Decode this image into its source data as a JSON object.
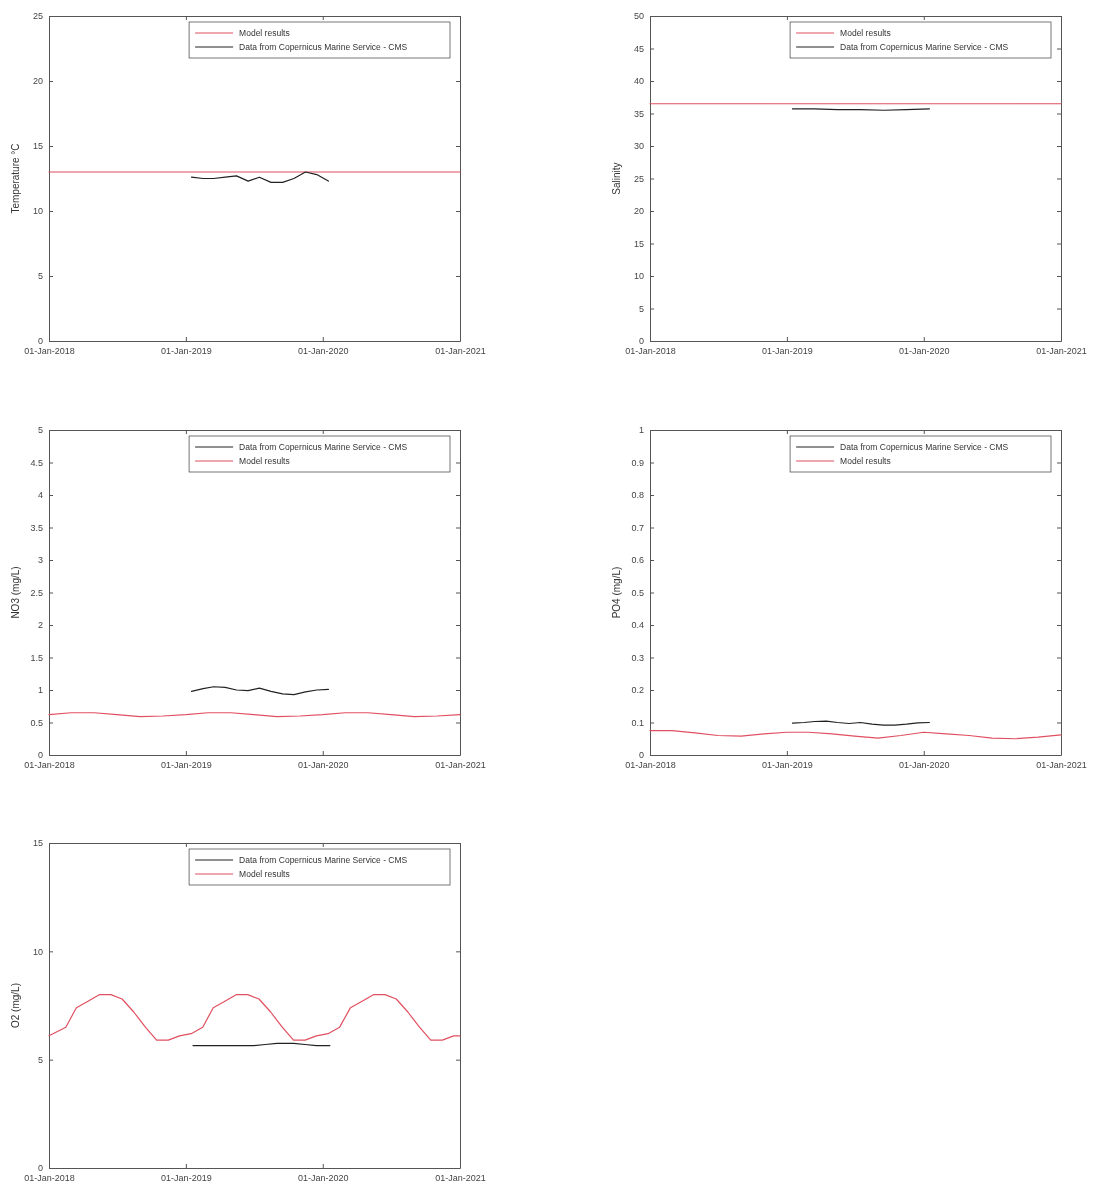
{
  "chart_data": [
    {
      "type": "line",
      "ylabel": "Temperature °C",
      "xlim": [
        "2018-01-01",
        "2021-01-01"
      ],
      "xticks": [
        {
          "value": "2018-01-01",
          "label": "01-Jan-2018"
        },
        {
          "value": "2019-01-01",
          "label": "01-Jan-2019"
        },
        {
          "value": "2020-01-01",
          "label": "01-Jan-2020"
        },
        {
          "value": "2021-01-01",
          "label": "01-Jan-2021"
        }
      ],
      "ylim": [
        0,
        25
      ],
      "yticks": [
        0,
        5,
        10,
        15,
        20,
        25
      ],
      "legend": "top right",
      "grid": false,
      "series": [
        {
          "name": "Model results",
          "color": "#e05060",
          "x": [
            "2018-01-01",
            "2021-01-01"
          ],
          "values": [
            13,
            13
          ]
        },
        {
          "name": "Data from Copernicus Marine Service - CMS",
          "color": "#222222",
          "x": [
            "2019-01-16",
            "2019-02-16",
            "2019-03-16",
            "2019-04-16",
            "2019-05-16",
            "2019-06-16",
            "2019-07-16",
            "2019-08-16",
            "2019-09-16",
            "2019-10-16",
            "2019-11-16",
            "2019-12-16",
            "2020-01-16"
          ],
          "values": [
            12.6,
            12.5,
            12.5,
            12.6,
            12.7,
            12.3,
            12.6,
            12.2,
            12.2,
            12.5,
            13.0,
            12.8,
            12.3
          ]
        }
      ]
    },
    {
      "type": "line",
      "ylabel": "Salinity",
      "xlim": [
        "2018-01-01",
        "2021-01-01"
      ],
      "xticks": [
        {
          "value": "2018-01-01",
          "label": "01-Jan-2018"
        },
        {
          "value": "2019-01-01",
          "label": "01-Jan-2019"
        },
        {
          "value": "2020-01-01",
          "label": "01-Jan-2020"
        },
        {
          "value": "2021-01-01",
          "label": "01-Jan-2021"
        }
      ],
      "ylim": [
        0,
        50
      ],
      "yticks": [
        0,
        5,
        10,
        15,
        20,
        25,
        30,
        35,
        40,
        45,
        50
      ],
      "legend": "top right",
      "grid": false,
      "series": [
        {
          "name": "Model results",
          "color": "#e05060",
          "x": [
            "2018-01-01",
            "2021-01-01"
          ],
          "values": [
            36.5,
            36.5
          ]
        },
        {
          "name": "Data from Copernicus Marine Service - CMS",
          "color": "#222222",
          "x": [
            "2019-01-16",
            "2019-03-16",
            "2019-05-16",
            "2019-07-16",
            "2019-09-16",
            "2019-11-16",
            "2020-01-16"
          ],
          "values": [
            35.7,
            35.7,
            35.6,
            35.6,
            35.5,
            35.6,
            35.7
          ]
        }
      ]
    },
    {
      "type": "line",
      "ylabel": "NO3 (mg/L)",
      "xlim": [
        "2018-01-01",
        "2021-01-01"
      ],
      "xticks": [
        {
          "value": "2018-01-01",
          "label": "01-Jan-2018"
        },
        {
          "value": "2019-01-01",
          "label": "01-Jan-2019"
        },
        {
          "value": "2020-01-01",
          "label": "01-Jan-2020"
        },
        {
          "value": "2021-01-01",
          "label": "01-Jan-2021"
        }
      ],
      "ylim": [
        0,
        5
      ],
      "yticks": [
        0,
        0.5,
        1,
        1.5,
        2,
        2.5,
        3,
        3.5,
        4,
        4.5,
        5
      ],
      "legend": "top right",
      "grid": false,
      "series": [
        {
          "name": "Data from Copernicus Marine Service - CMS",
          "color": "#222222",
          "x": [
            "2019-01-16",
            "2019-02-16",
            "2019-03-16",
            "2019-04-16",
            "2019-05-16",
            "2019-06-16",
            "2019-07-16",
            "2019-08-16",
            "2019-09-16",
            "2019-10-16",
            "2019-11-16",
            "2019-12-16",
            "2020-01-16"
          ],
          "values": [
            0.98,
            1.02,
            1.05,
            1.04,
            1.0,
            0.99,
            1.03,
            0.98,
            0.94,
            0.93,
            0.97,
            1.0,
            1.01
          ]
        },
        {
          "name": "Model results",
          "color": "#e05060",
          "x": [
            "2018-01-01",
            "2018-03-01",
            "2018-05-01",
            "2018-07-01",
            "2018-09-01",
            "2018-11-01",
            "2019-01-01",
            "2019-03-01",
            "2019-05-01",
            "2019-07-01",
            "2019-09-01",
            "2019-11-01",
            "2020-01-01",
            "2020-03-01",
            "2020-05-01",
            "2020-07-01",
            "2020-09-01",
            "2020-11-01",
            "2021-01-01"
          ],
          "values": [
            0.62,
            0.65,
            0.65,
            0.62,
            0.59,
            0.6,
            0.62,
            0.65,
            0.65,
            0.62,
            0.59,
            0.6,
            0.62,
            0.65,
            0.65,
            0.62,
            0.59,
            0.6,
            0.62
          ]
        }
      ]
    },
    {
      "type": "line",
      "ylabel": "PO4 (mg/L)",
      "xlim": [
        "2018-01-01",
        "2021-01-01"
      ],
      "xticks": [
        {
          "value": "2018-01-01",
          "label": "01-Jan-2018"
        },
        {
          "value": "2019-01-01",
          "label": "01-Jan-2019"
        },
        {
          "value": "2020-01-01",
          "label": "01-Jan-2020"
        },
        {
          "value": "2021-01-01",
          "label": "01-Jan-2021"
        }
      ],
      "ylim": [
        0,
        1
      ],
      "yticks": [
        0,
        0.1,
        0.2,
        0.3,
        0.4,
        0.5,
        0.6,
        0.7,
        0.8,
        0.9,
        1
      ],
      "legend": "top right",
      "grid": false,
      "series": [
        {
          "name": "Data from Copernicus Marine Service - CMS",
          "color": "#222222",
          "x": [
            "2019-01-16",
            "2019-02-16",
            "2019-03-16",
            "2019-04-16",
            "2019-05-16",
            "2019-06-16",
            "2019-07-16",
            "2019-08-16",
            "2019-09-16",
            "2019-10-16",
            "2019-11-16",
            "2019-12-16",
            "2020-01-16"
          ],
          "values": [
            0.098,
            0.1,
            0.103,
            0.104,
            0.1,
            0.097,
            0.1,
            0.095,
            0.092,
            0.092,
            0.095,
            0.099,
            0.1
          ]
        },
        {
          "name": "Model results",
          "color": "#e05060",
          "x": [
            "2018-01-01",
            "2018-03-01",
            "2018-05-01",
            "2018-07-01",
            "2018-09-01",
            "2018-11-01",
            "2019-01-01",
            "2019-03-01",
            "2019-05-01",
            "2019-07-01",
            "2019-09-01",
            "2019-11-01",
            "2020-01-01",
            "2020-03-01",
            "2020-05-01",
            "2020-07-01",
            "2020-09-01",
            "2020-11-01",
            "2021-01-01"
          ],
          "values": [
            0.075,
            0.075,
            0.068,
            0.06,
            0.058,
            0.065,
            0.07,
            0.07,
            0.065,
            0.058,
            0.052,
            0.06,
            0.07,
            0.065,
            0.06,
            0.052,
            0.05,
            0.055,
            0.062
          ]
        }
      ]
    },
    {
      "type": "line",
      "ylabel": "O2 (mg/L)",
      "xlim": [
        "2018-01-01",
        "2021-01-01"
      ],
      "xticks": [
        {
          "value": "2018-01-01",
          "label": "01-Jan-2018"
        },
        {
          "value": "2019-01-01",
          "label": "01-Jan-2019"
        },
        {
          "value": "2020-01-01",
          "label": "01-Jan-2020"
        },
        {
          "value": "2021-01-01",
          "label": "01-Jan-2021"
        }
      ],
      "ylim": [
        0,
        15
      ],
      "yticks": [
        0,
        5,
        10,
        15
      ],
      "legend": "top right",
      "grid": false,
      "series": [
        {
          "name": "Data from Copernicus Marine Service - CMS",
          "color": "#222222",
          "x": [
            "2019-01-20",
            "2019-03-01",
            "2019-05-01",
            "2019-07-01",
            "2019-08-01",
            "2019-09-01",
            "2019-10-15",
            "2019-11-15",
            "2019-12-15",
            "2020-01-20"
          ],
          "values": [
            5.65,
            5.65,
            5.65,
            5.65,
            5.7,
            5.75,
            5.75,
            5.7,
            5.65,
            5.65
          ]
        },
        {
          "name": "Model results",
          "color": "#e05060",
          "x": [
            "2018-01-01",
            "2018-02-15",
            "2018-03-15",
            "2018-04-15",
            "2018-05-15",
            "2018-06-15",
            "2018-07-15",
            "2018-08-15",
            "2018-09-15",
            "2018-10-15",
            "2018-11-15",
            "2018-12-15",
            "2019-01-15",
            "2019-02-15",
            "2019-03-15",
            "2019-04-15",
            "2019-05-15",
            "2019-06-15",
            "2019-07-15",
            "2019-08-15",
            "2019-09-15",
            "2019-10-15",
            "2019-11-15",
            "2019-12-15",
            "2020-01-15",
            "2020-02-15",
            "2020-03-15",
            "2020-04-15",
            "2020-05-15",
            "2020-06-15",
            "2020-07-15",
            "2020-08-15",
            "2020-09-15",
            "2020-10-15",
            "2020-11-15",
            "2020-12-15",
            "2021-01-01"
          ],
          "values": [
            6.1,
            6.5,
            7.4,
            7.7,
            8.0,
            8.0,
            7.8,
            7.2,
            6.5,
            5.9,
            5.9,
            6.1,
            6.2,
            6.5,
            7.4,
            7.7,
            8.0,
            8.0,
            7.8,
            7.2,
            6.5,
            5.9,
            5.9,
            6.1,
            6.2,
            6.5,
            7.4,
            7.7,
            8.0,
            8.0,
            7.8,
            7.2,
            6.5,
            5.9,
            5.9,
            6.1,
            6.1
          ]
        }
      ]
    }
  ]
}
